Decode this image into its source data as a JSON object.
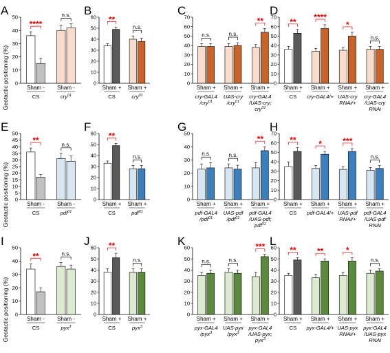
{
  "y_axis_label": "Geotactic positioning (%)",
  "colors": {
    "white": "#ffffff",
    "grey": "#c0c0c0",
    "dark_grey": "#5a5a5a",
    "light_peach": "#f9dccb",
    "orange": "#c8642a",
    "light_blue": "#d6e6f2",
    "blue": "#3b7fbf",
    "light_green": "#dcebd0",
    "green": "#5c8a3c",
    "significance": "#e60000"
  },
  "chart_data": [
    {
      "type": "bar",
      "panel": "A",
      "ylim": [
        0,
        50
      ],
      "yticks": [
        0,
        10,
        20,
        30,
        40,
        50
      ],
      "groups": [
        {
          "label": "CS",
          "cond": [
            "Sham",
            "-"
          ],
          "values": [
            36,
            15
          ],
          "errors": [
            3,
            4
          ],
          "colors": [
            "#ffffff",
            "#c0c0c0"
          ],
          "sig": "****"
        },
        {
          "label": "cry01",
          "cond": [
            "Sham",
            "-"
          ],
          "values": [
            40,
            42
          ],
          "errors": [
            4,
            3
          ],
          "colors": [
            "#f9dccb",
            "#f9dccb"
          ],
          "sig": "n.s."
        }
      ]
    },
    {
      "type": "bar",
      "panel": "B",
      "ylim": [
        0,
        60
      ],
      "yticks": [
        0,
        10,
        20,
        30,
        40,
        50,
        60
      ],
      "groups": [
        {
          "label": "CS",
          "cond": [
            "Sham",
            "+"
          ],
          "values": [
            34,
            49
          ],
          "errors": [
            2,
            2
          ],
          "colors": [
            "#ffffff",
            "#5a5a5a"
          ],
          "sig": "**"
        },
        {
          "label": "cry01",
          "cond": [
            "Sham",
            "+"
          ],
          "values": [
            40,
            38
          ],
          "errors": [
            3,
            3
          ],
          "colors": [
            "#f9dccb",
            "#c8642a"
          ],
          "sig": "n.s."
        }
      ]
    },
    {
      "type": "bar",
      "panel": "C",
      "ylim": [
        0,
        70
      ],
      "yticks": [
        0,
        10,
        20,
        30,
        40,
        50,
        60,
        70
      ],
      "groups": [
        {
          "label": "cry-GAL4\n/cry01",
          "cond": [
            "Sham",
            "+"
          ],
          "values": [
            39,
            39
          ],
          "errors": [
            3,
            3
          ],
          "colors": [
            "#f9dccb",
            "#c8642a"
          ],
          "sig": "n.s."
        },
        {
          "label": "UAS-cry\n/cry01",
          "cond": [
            "Sham",
            "+"
          ],
          "values": [
            39,
            40
          ],
          "errors": [
            3,
            3
          ],
          "colors": [
            "#f9dccb",
            "#c8642a"
          ],
          "sig": "n.s."
        },
        {
          "label": "cry-GAL4\n/UAS-cry;\ncry01",
          "cond": [
            "Sham",
            "+"
          ],
          "values": [
            38,
            54
          ],
          "errors": [
            3,
            4
          ],
          "colors": [
            "#f9dccb",
            "#c8642a"
          ],
          "sig": "**"
        }
      ]
    },
    {
      "type": "bar",
      "panel": "D",
      "ylim": [
        0,
        70
      ],
      "yticks": [
        0,
        10,
        20,
        30,
        40,
        50,
        60,
        70
      ],
      "groups": [
        {
          "label": "CS",
          "cond": [
            "Sham",
            "+"
          ],
          "values": [
            36,
            53
          ],
          "errors": [
            3,
            4
          ],
          "colors": [
            "#ffffff",
            "#5a5a5a"
          ],
          "sig": "**"
        },
        {
          "label": "cry-GAL4/+",
          "cond": [
            "Sham",
            "+"
          ],
          "values": [
            34,
            58
          ],
          "errors": [
            3,
            4
          ],
          "colors": [
            "#f9dccb",
            "#c8642a"
          ],
          "sig": "****"
        },
        {
          "label": "UAS-cry\nRNAi/+",
          "cond": [
            "Sham",
            "+"
          ],
          "values": [
            35,
            50
          ],
          "errors": [
            3,
            4
          ],
          "colors": [
            "#f9dccb",
            "#c8642a"
          ],
          "sig": "*"
        },
        {
          "label": "cry-GAL4\n/UAS-cry\nRNAi",
          "cond": [
            "Sham",
            "+"
          ],
          "values": [
            36,
            36
          ],
          "errors": [
            3,
            3
          ],
          "colors": [
            "#f9dccb",
            "#c8642a"
          ],
          "sig": "n.s."
        }
      ]
    },
    {
      "type": "bar",
      "panel": "E",
      "ylim": [
        0,
        50
      ],
      "yticks": [
        0,
        5,
        10,
        15,
        20,
        25,
        30,
        35,
        40,
        45,
        50
      ],
      "groups": [
        {
          "label": "CS",
          "cond": [
            "Sham",
            "-"
          ],
          "values": [
            36,
            17
          ],
          "errors": [
            3,
            2
          ],
          "colors": [
            "#ffffff",
            "#c0c0c0"
          ],
          "sig": "**"
        },
        {
          "label": "pdf01",
          "cond": [
            "Sham",
            "-"
          ],
          "values": [
            31,
            29
          ],
          "errors": [
            4,
            4
          ],
          "colors": [
            "#d6e6f2",
            "#d6e6f2"
          ],
          "sig": "n.s."
        }
      ]
    },
    {
      "type": "bar",
      "panel": "F",
      "ylim": [
        0,
        60
      ],
      "yticks": [
        0,
        10,
        20,
        30,
        40,
        50,
        60
      ],
      "groups": [
        {
          "label": "CS",
          "cond": [
            "Sham",
            "+"
          ],
          "values": [
            33,
            49
          ],
          "errors": [
            2,
            2
          ],
          "colors": [
            "#ffffff",
            "#5a5a5a"
          ],
          "sig": "**"
        },
        {
          "label": "pdf01",
          "cond": [
            "Sham",
            "+"
          ],
          "values": [
            28,
            28
          ],
          "errors": [
            3,
            3
          ],
          "colors": [
            "#d6e6f2",
            "#3b7fbf"
          ],
          "sig": "n.s."
        }
      ]
    },
    {
      "type": "bar",
      "panel": "G",
      "ylim": [
        0,
        50
      ],
      "yticks": [
        0,
        10,
        20,
        30,
        40,
        50
      ],
      "groups": [
        {
          "label": "pdf-GAL4\n/pdf01",
          "cond": [
            "Sham",
            "+"
          ],
          "values": [
            23,
            24
          ],
          "errors": [
            4,
            4
          ],
          "colors": [
            "#d6e6f2",
            "#3b7fbf"
          ],
          "sig": "n.s."
        },
        {
          "label": "UAS-pdf\n/pdf01",
          "cond": [
            "Sham",
            "+"
          ],
          "values": [
            24,
            23
          ],
          "errors": [
            3,
            3
          ],
          "colors": [
            "#d6e6f2",
            "#3b7fbf"
          ],
          "sig": "n.s."
        },
        {
          "label": "pdf-GAL4\n/UAS-pdf;\npdf01",
          "cond": [
            "Sham",
            "+"
          ],
          "values": [
            24,
            37
          ],
          "errors": [
            4,
            3
          ],
          "colors": [
            "#d6e6f2",
            "#3b7fbf"
          ],
          "sig": "**"
        }
      ]
    },
    {
      "type": "bar",
      "panel": "H",
      "ylim": [
        0,
        70
      ],
      "yticks": [
        0,
        10,
        20,
        30,
        40,
        50,
        60,
        70
      ],
      "groups": [
        {
          "label": "CS",
          "cond": [
            "Sham",
            "+"
          ],
          "values": [
            35,
            51
          ],
          "errors": [
            5,
            4
          ],
          "colors": [
            "#ffffff",
            "#5a5a5a"
          ],
          "sig": "**"
        },
        {
          "label": "pdf-GAL4/+",
          "cond": [
            "Sham",
            "+"
          ],
          "values": [
            33,
            48
          ],
          "errors": [
            3,
            3
          ],
          "colors": [
            "#d6e6f2",
            "#3b7fbf"
          ],
          "sig": "*"
        },
        {
          "label": "UAS-pdf\nRNAi/+",
          "cond": [
            "Sham",
            "+"
          ],
          "values": [
            32,
            51
          ],
          "errors": [
            3,
            3
          ],
          "colors": [
            "#d6e6f2",
            "#3b7fbf"
          ],
          "sig": "***"
        },
        {
          "label": "pdf-GAL4\n/UAS-pdf\nRNAi",
          "cond": [
            "Sham",
            "+"
          ],
          "values": [
            31,
            33
          ],
          "errors": [
            3,
            3
          ],
          "colors": [
            "#d6e6f2",
            "#3b7fbf"
          ],
          "sig": "n.s."
        }
      ]
    },
    {
      "type": "bar",
      "panel": "I",
      "ylim": [
        0,
        50
      ],
      "yticks": [
        0,
        10,
        20,
        30,
        40,
        50
      ],
      "groups": [
        {
          "label": "CS",
          "cond": [
            "Sham",
            "-"
          ],
          "values": [
            34,
            17
          ],
          "errors": [
            4,
            3
          ],
          "colors": [
            "#ffffff",
            "#c0c0c0"
          ],
          "sig": "**"
        },
        {
          "label": "pyx3",
          "cond": [
            "Sham",
            "-"
          ],
          "values": [
            36,
            34
          ],
          "errors": [
            3,
            3
          ],
          "colors": [
            "#dcebd0",
            "#dcebd0"
          ],
          "sig": "n.s."
        }
      ]
    },
    {
      "type": "bar",
      "panel": "J",
      "ylim": [
        0,
        60
      ],
      "yticks": [
        0,
        10,
        20,
        30,
        40,
        50,
        60
      ],
      "groups": [
        {
          "label": "CS",
          "cond": [
            "Sham",
            "+"
          ],
          "values": [
            38,
            51
          ],
          "errors": [
            3,
            4
          ],
          "colors": [
            "#ffffff",
            "#5a5a5a"
          ],
          "sig": "**"
        },
        {
          "label": "pyx3",
          "cond": [
            "Sham",
            "+"
          ],
          "values": [
            38,
            38
          ],
          "errors": [
            3,
            3
          ],
          "colors": [
            "#dcebd0",
            "#5c8a3c"
          ],
          "sig": "n.s."
        }
      ]
    },
    {
      "type": "bar",
      "panel": "K",
      "ylim": [
        0,
        60
      ],
      "yticks": [
        0,
        10,
        20,
        30,
        40,
        50,
        60
      ],
      "groups": [
        {
          "label": "pyx-GAL4\n/pyx3",
          "cond": [
            "Sham",
            "+"
          ],
          "values": [
            35,
            37
          ],
          "errors": [
            3,
            3
          ],
          "colors": [
            "#dcebd0",
            "#5c8a3c"
          ],
          "sig": "n.s."
        },
        {
          "label": "UAS-pyx\n/pyx3",
          "cond": [
            "Sham",
            "+"
          ],
          "values": [
            38,
            37
          ],
          "errors": [
            3,
            3
          ],
          "colors": [
            "#dcebd0",
            "#5c8a3c"
          ],
          "sig": "n.s."
        },
        {
          "label": "pyx-GAL4\n/UAS-pyx;\npyx3",
          "cond": [
            "Sham",
            "+"
          ],
          "values": [
            34,
            52
          ],
          "errors": [
            4,
            2
          ],
          "colors": [
            "#dcebd0",
            "#5c8a3c"
          ],
          "sig": "***"
        }
      ]
    },
    {
      "type": "bar",
      "panel": "L",
      "ylim": [
        0,
        60
      ],
      "yticks": [
        0,
        10,
        20,
        30,
        40,
        50,
        60
      ],
      "groups": [
        {
          "label": "CS",
          "cond": [
            "Sham",
            "+"
          ],
          "values": [
            35,
            49
          ],
          "errors": [
            2,
            2
          ],
          "colors": [
            "#ffffff",
            "#5a5a5a"
          ],
          "sig": "**"
        },
        {
          "label": "pyx-GAL4/+",
          "cond": [
            "Sham",
            "+"
          ],
          "values": [
            33,
            48
          ],
          "errors": [
            3,
            2
          ],
          "colors": [
            "#dcebd0",
            "#5c8a3c"
          ],
          "sig": "**"
        },
        {
          "label": "UAS-pyx\nRNAi/+",
          "cond": [
            "Sham",
            "+"
          ],
          "values": [
            35,
            48
          ],
          "errors": [
            3,
            3
          ],
          "colors": [
            "#dcebd0",
            "#5c8a3c"
          ],
          "sig": "*"
        },
        {
          "label": "pyx-GAL4\n/UAS-pyx\nRNAi",
          "cond": [
            "Sham",
            "+"
          ],
          "values": [
            37,
            39
          ],
          "errors": [
            3,
            2
          ],
          "colors": [
            "#dcebd0",
            "#5c8a3c"
          ],
          "sig": "n.s."
        }
      ]
    }
  ]
}
